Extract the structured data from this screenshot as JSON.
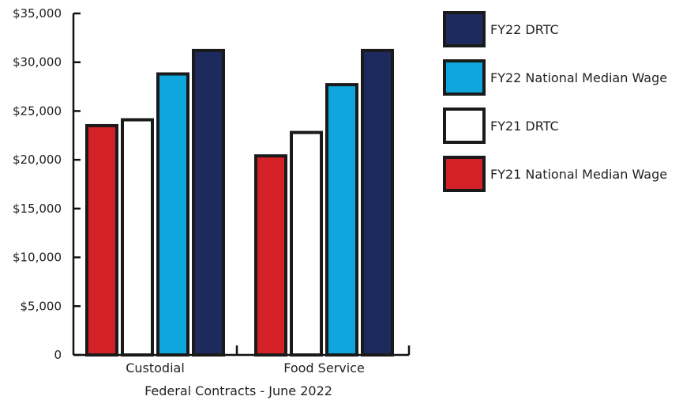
{
  "chart_data": {
    "type": "bar",
    "title": "",
    "xlabel": "Federal Contracts - June 2022",
    "ylabel": "",
    "categories": [
      "Custodial",
      "Food Service"
    ],
    "ylim": [
      0,
      35000
    ],
    "yticks": [
      0,
      5000,
      10000,
      15000,
      20000,
      25000,
      30000,
      35000
    ],
    "ytick_labels": [
      "0",
      "$5,000",
      "$10,000",
      "$15,000",
      "$20,000",
      "$25,000",
      "$30,000",
      "$35,000"
    ],
    "grid": false,
    "legend_position": "right",
    "series": [
      {
        "name": "FY21 National Median Wage",
        "color": "#d42027",
        "values": [
          23500,
          20400
        ]
      },
      {
        "name": "FY21 DRTC",
        "color": "#ffffff",
        "values": [
          24100,
          22800
        ]
      },
      {
        "name": "FY22 National Median Wage",
        "color": "#0fa6de",
        "values": [
          28800,
          27700
        ]
      },
      {
        "name": "FY22 DRTC",
        "color": "#1c2a5e",
        "values": [
          31200,
          31200
        ]
      }
    ],
    "legend_order": [
      "FY22 DRTC",
      "FY22 National Median Wage",
      "FY21 DRTC",
      "FY21 National Median Wage"
    ]
  }
}
